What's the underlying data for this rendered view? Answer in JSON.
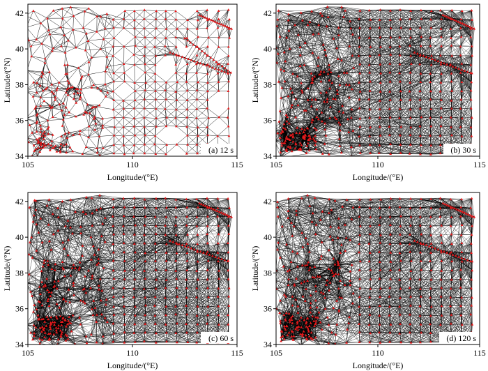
{
  "chart_data": [
    {
      "type": "scatter",
      "panel": "(a) 12 s",
      "period_label": "(a) 12 s",
      "xlabel": "Longitude/(°E)",
      "ylabel": "Latitude/(°N)",
      "xlim": [
        105,
        115
      ],
      "ylim": [
        34,
        42.5
      ],
      "xticks": [
        105,
        110,
        115
      ],
      "yticks": [
        34,
        36,
        38,
        40,
        42
      ],
      "xtick_labels": [
        "105",
        "110",
        "115"
      ],
      "ytick_labels": [
        "34",
        "36",
        "38",
        "40",
        "42"
      ],
      "grid_step_deg": 0.5,
      "density": "sparse",
      "point_color": "#e41a1c",
      "line_color": "#000000"
    },
    {
      "type": "scatter",
      "panel": "(b) 30 s",
      "period_label": "(b) 30 s",
      "xlabel": "Longitude/(°E)",
      "ylabel": "Latitude/(°N)",
      "xlim": [
        105,
        115
      ],
      "ylim": [
        34,
        42.5
      ],
      "xticks": [
        105,
        110,
        115
      ],
      "yticks": [
        34,
        36,
        38,
        40,
        42
      ],
      "xtick_labels": [
        "105",
        "110",
        "115"
      ],
      "ytick_labels": [
        "34",
        "36",
        "38",
        "40",
        "42"
      ],
      "grid_step_deg": 0.5,
      "density": "dense",
      "point_color": "#e41a1c",
      "line_color": "#000000"
    },
    {
      "type": "scatter",
      "panel": "(c) 60 s",
      "period_label": "(c) 60 s",
      "xlabel": "Longitude/(°E)",
      "ylabel": "Latitude/(°N)",
      "xlim": [
        105,
        115
      ],
      "ylim": [
        34,
        42.5
      ],
      "xticks": [
        105,
        110,
        115
      ],
      "yticks": [
        34,
        36,
        38,
        40,
        42
      ],
      "xtick_labels": [
        "105",
        "110",
        "115"
      ],
      "ytick_labels": [
        "34",
        "36",
        "38",
        "40",
        "42"
      ],
      "grid_step_deg": 0.5,
      "density": "dense",
      "point_color": "#e41a1c",
      "line_color": "#000000"
    },
    {
      "type": "scatter",
      "panel": "(d) 120 s",
      "period_label": "(d) 120 s",
      "xlabel": "Longitude/(°E)",
      "ylabel": "Latitude/(°N)",
      "xlim": [
        105,
        115
      ],
      "ylim": [
        34,
        42.5
      ],
      "xticks": [
        105,
        110,
        115
      ],
      "yticks": [
        34,
        36,
        38,
        40,
        42
      ],
      "xtick_labels": [
        "105",
        "110",
        "115"
      ],
      "ytick_labels": [
        "34",
        "36",
        "38",
        "40",
        "42"
      ],
      "grid_step_deg": 0.5,
      "density": "dense",
      "point_color": "#e41a1c",
      "line_color": "#000000"
    }
  ]
}
